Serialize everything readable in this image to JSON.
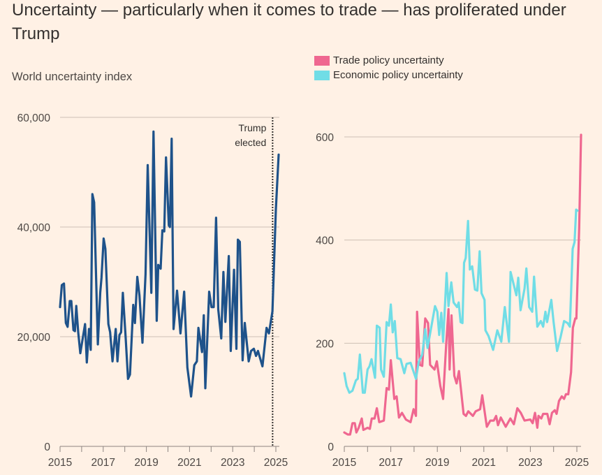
{
  "title": "Uncertainty — particularly when it comes to trade — has proliferated under Trump",
  "colors": {
    "background": "#fff1e5",
    "world": "#1e528a",
    "trade": "#ef6790",
    "economic": "#70dde6",
    "grid": "#cdbfb5",
    "axis": "#8c8480"
  },
  "chart_data": [
    {
      "type": "line",
      "title": "World uncertainty index",
      "xlabel": "",
      "ylabel": "",
      "xlim": [
        2015,
        2025.13
      ],
      "ylim": [
        0,
        60000
      ],
      "yticks": [
        0,
        20000,
        40000,
        60000
      ],
      "ytick_labels": [
        "0",
        "20,000",
        "40,000",
        "60,000"
      ],
      "xticks": [
        2015,
        2016,
        2017,
        2018,
        2019,
        2020,
        2021,
        2022,
        2023,
        2024,
        2025
      ],
      "xtick_labels": [
        "2015",
        "2017",
        "2019",
        "2021",
        "2023",
        "2025"
      ],
      "xtick_label_years": [
        2015,
        2017,
        2019,
        2021,
        2023,
        2025
      ],
      "grid": true,
      "annotation": {
        "x": 2024.85,
        "label_line1": "Trump",
        "label_line2": "elected"
      },
      "series": [
        {
          "name": "World uncertainty index",
          "color": "#1e528a",
          "x": [
            2015.0,
            2015.08,
            2015.18,
            2015.27,
            2015.35,
            2015.45,
            2015.52,
            2015.62,
            2015.69,
            2015.75,
            2015.84,
            2015.94,
            2016.16,
            2016.24,
            2016.34,
            2016.42,
            2016.5,
            2016.58,
            2016.75,
            2016.86,
            2016.92,
            2017.02,
            2017.1,
            2017.24,
            2017.32,
            2017.43,
            2017.58,
            2017.66,
            2017.75,
            2017.83,
            2017.91,
            2018.04,
            2018.15,
            2018.24,
            2018.39,
            2018.47,
            2018.58,
            2018.68,
            2018.82,
            2018.96,
            2019.06,
            2019.23,
            2019.33,
            2019.48,
            2019.55,
            2019.66,
            2019.74,
            2019.83,
            2019.91,
            2020.04,
            2020.09,
            2020.17,
            2020.26,
            2020.42,
            2020.58,
            2020.75,
            2020.9,
            2021.07,
            2021.22,
            2021.34,
            2021.41,
            2021.58,
            2021.66,
            2021.73,
            2021.91,
            2022.02,
            2022.12,
            2022.23,
            2022.33,
            2022.47,
            2022.57,
            2022.66,
            2022.82,
            2022.91,
            2023.06,
            2023.17,
            2023.24,
            2023.33,
            2023.46,
            2023.56,
            2023.74,
            2023.85,
            2023.98,
            2024.08,
            2024.17,
            2024.38,
            2024.57,
            2024.68,
            2024.84,
            2025.0,
            2025.13
          ],
          "y": [
            25400,
            29400,
            29700,
            22500,
            21800,
            26500,
            26500,
            21200,
            21000,
            25600,
            20800,
            17000,
            22300,
            15300,
            21400,
            17600,
            46000,
            44500,
            18600,
            28000,
            30700,
            37900,
            36000,
            22300,
            20800,
            15500,
            21400,
            15500,
            20300,
            20800,
            28000,
            19900,
            12300,
            13100,
            25800,
            22500,
            30900,
            27500,
            18900,
            31400,
            51300,
            28000,
            57400,
            22900,
            33100,
            32400,
            39400,
            39200,
            52700,
            40300,
            40000,
            56100,
            21400,
            28400,
            20600,
            28200,
            14400,
            9100,
            14800,
            15500,
            21600,
            17200,
            23900,
            10600,
            28200,
            25400,
            25400,
            41700,
            25000,
            19700,
            31800,
            22700,
            34700,
            17400,
            32200,
            17800,
            37700,
            37300,
            15700,
            22500,
            15500,
            17400,
            17800,
            16500,
            17400,
            14600,
            21600,
            20600,
            24600,
            43200,
            53200
          ]
        }
      ]
    },
    {
      "type": "line",
      "title": "",
      "xlabel": "",
      "ylabel": "",
      "xlim": [
        2015,
        2025.2
      ],
      "ylim": [
        0,
        600
      ],
      "yticks": [
        0,
        200,
        400,
        600
      ],
      "ytick_labels": [
        "0",
        "200",
        "400",
        "600"
      ],
      "xticks": [
        2015,
        2016,
        2017,
        2018,
        2019,
        2020,
        2021,
        2022,
        2023,
        2024,
        2025
      ],
      "xtick_labels": [
        "2015",
        "2017",
        "2019",
        "2021",
        "2023",
        "2025"
      ],
      "xtick_label_years": [
        2015,
        2017,
        2019,
        2021,
        2023,
        2025
      ],
      "grid": true,
      "legend": {
        "placement": "top-left",
        "entries": [
          "Trade policy uncertainty",
          "Economic policy uncertainty"
        ]
      },
      "series": [
        {
          "name": "Trade policy uncertainty",
          "color": "#ef6790",
          "x": [
            2015.0,
            2015.15,
            2015.25,
            2015.35,
            2015.45,
            2015.52,
            2015.62,
            2015.75,
            2015.82,
            2016.0,
            2016.1,
            2016.18,
            2016.3,
            2016.4,
            2016.5,
            2016.7,
            2016.82,
            2016.92,
            2017.0,
            2017.15,
            2017.25,
            2017.35,
            2017.48,
            2017.65,
            2017.85,
            2017.98,
            2018.08,
            2018.13,
            2018.25,
            2018.35,
            2018.48,
            2018.6,
            2018.69,
            2018.88,
            2018.98,
            2019.13,
            2019.25,
            2019.38,
            2019.48,
            2019.53,
            2019.61,
            2019.73,
            2019.83,
            2019.93,
            2020.13,
            2020.23,
            2020.33,
            2020.53,
            2020.65,
            2020.84,
            2020.93,
            2021.13,
            2021.28,
            2021.43,
            2021.53,
            2021.61,
            2021.73,
            2021.94,
            2022.14,
            2022.29,
            2022.44,
            2022.59,
            2022.75,
            2023.0,
            2023.1,
            2023.2,
            2023.3,
            2023.35,
            2023.47,
            2023.55,
            2023.73,
            2023.83,
            2023.93,
            2024.05,
            2024.13,
            2024.23,
            2024.35,
            2024.45,
            2024.53,
            2024.63,
            2024.75,
            2024.83,
            2024.93,
            2024.98,
            2025.1,
            2025.18
          ],
          "y": [
            27,
            23,
            23,
            45,
            45,
            27,
            36,
            54,
            32,
            36,
            34,
            54,
            54,
            74,
            47,
            50,
            113,
            110,
            167,
            92,
            97,
            56,
            65,
            52,
            47,
            72,
            59,
            261,
            158,
            156,
            248,
            239,
            158,
            149,
            165,
            117,
            92,
            198,
            266,
            149,
            254,
            137,
            122,
            146,
            63,
            59,
            68,
            59,
            68,
            72,
            99,
            38,
            50,
            50,
            59,
            41,
            56,
            38,
            54,
            43,
            74,
            65,
            50,
            52,
            45,
            65,
            36,
            59,
            54,
            63,
            63,
            43,
            65,
            70,
            63,
            88,
            97,
            92,
            101,
            101,
            144,
            230,
            248,
            248,
            423,
            604
          ]
        },
        {
          "name": "Economic policy uncertainty",
          "color": "#70dde6",
          "x": [
            2015.0,
            2015.1,
            2015.22,
            2015.35,
            2015.5,
            2015.58,
            2015.67,
            2015.8,
            2015.88,
            2016.0,
            2016.08,
            2016.17,
            2016.32,
            2016.4,
            2016.52,
            2016.58,
            2016.7,
            2016.82,
            2016.92,
            2017.0,
            2017.08,
            2017.17,
            2017.28,
            2017.42,
            2017.58,
            2017.68,
            2017.85,
            2018.08,
            2018.2,
            2018.35,
            2018.48,
            2018.58,
            2018.9,
            2019.0,
            2019.08,
            2019.17,
            2019.25,
            2019.4,
            2019.48,
            2019.6,
            2019.7,
            2019.85,
            2019.92,
            2020.0,
            2020.08,
            2020.15,
            2020.22,
            2020.32,
            2020.4,
            2020.5,
            2020.62,
            2020.72,
            2020.82,
            2020.9,
            2021.03,
            2021.07,
            2021.2,
            2021.4,
            2021.58,
            2021.75,
            2021.9,
            2022.08,
            2022.15,
            2022.4,
            2022.48,
            2022.58,
            2022.75,
            2022.83,
            2022.95,
            2023.08,
            2023.16,
            2023.3,
            2023.45,
            2023.55,
            2023.65,
            2023.72,
            2023.9,
            2024.0,
            2024.15,
            2024.3,
            2024.45,
            2024.6,
            2024.7,
            2024.82,
            2024.9,
            2024.97,
            2025.03
          ],
          "y": [
            142,
            117,
            104,
            108,
            128,
            131,
            178,
            104,
            104,
            149,
            155,
            169,
            133,
            234,
            230,
            149,
            135,
            241,
            234,
            275,
            221,
            243,
            171,
            169,
            142,
            160,
            162,
            131,
            164,
            178,
            227,
            191,
            272,
            261,
            216,
            259,
            203,
            336,
            272,
            318,
            279,
            270,
            279,
            241,
            239,
            356,
            365,
            437,
            343,
            349,
            304,
            302,
            378,
            297,
            284,
            225,
            214,
            187,
            225,
            203,
            270,
            203,
            338,
            293,
            327,
            264,
            306,
            345,
            270,
            261,
            329,
            232,
            243,
            232,
            261,
            241,
            284,
            241,
            185,
            212,
            243,
            239,
            232,
            383,
            396,
            459,
            457
          ]
        }
      ]
    }
  ]
}
